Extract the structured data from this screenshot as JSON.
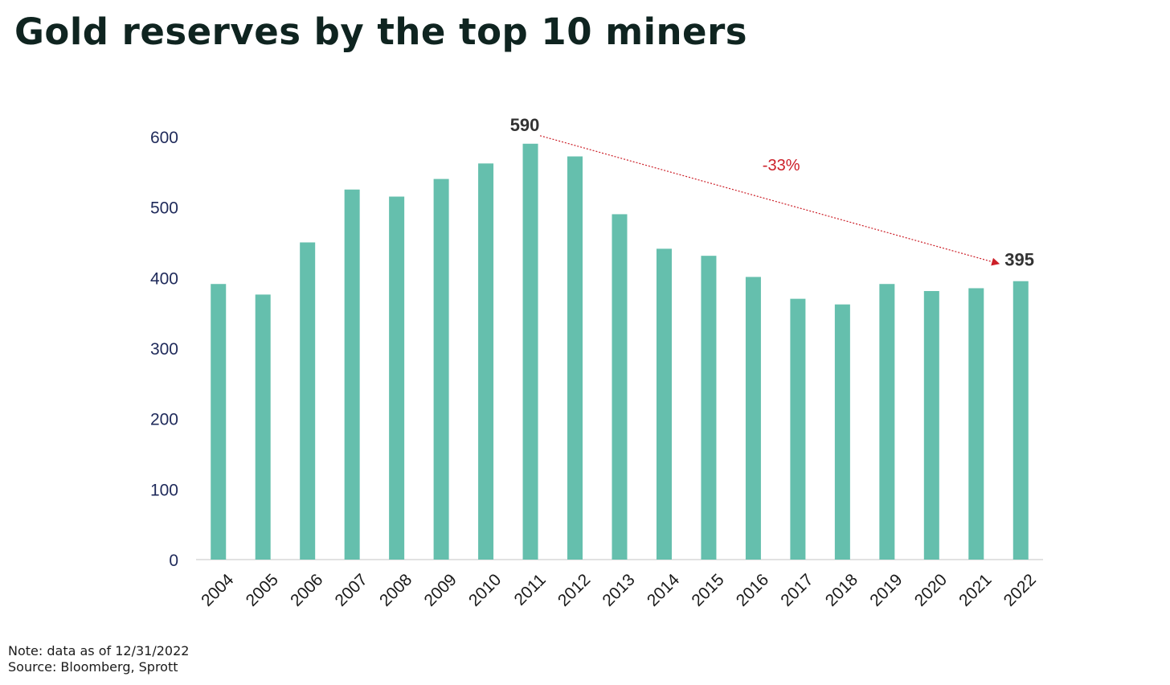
{
  "title": "Gold reserves by the top 10 miners",
  "footnote": {
    "note": "Note: data as of 12/31/2022",
    "source": "Source: Bloomberg, Sprott"
  },
  "colors": {
    "bar": "#65bfad",
    "axis_text": "#1f2a5a",
    "annotation": "#cc1f28",
    "label": "#333333"
  },
  "chart_data": {
    "type": "bar",
    "title": "Gold reserves by the top 10 miners",
    "xlabel": "",
    "ylabel": "",
    "categories": [
      "2004",
      "2005",
      "2006",
      "2007",
      "2008",
      "2009",
      "2010",
      "2011",
      "2012",
      "2013",
      "2014",
      "2015",
      "2016",
      "2017",
      "2018",
      "2019",
      "2020",
      "2021",
      "2022"
    ],
    "values": [
      391,
      376,
      450,
      525,
      515,
      540,
      562,
      590,
      572,
      490,
      441,
      431,
      401,
      370,
      362,
      391,
      381,
      385,
      395
    ],
    "ylim": [
      0,
      600
    ],
    "yticks": [
      "0",
      "100",
      "200",
      "300",
      "400",
      "500",
      "600"
    ],
    "grid": false,
    "legend": "none",
    "annotations": {
      "peak_label": "590",
      "end_label": "395",
      "change_label": "-33%",
      "arrow_from": "2011",
      "arrow_to": "2022"
    }
  }
}
